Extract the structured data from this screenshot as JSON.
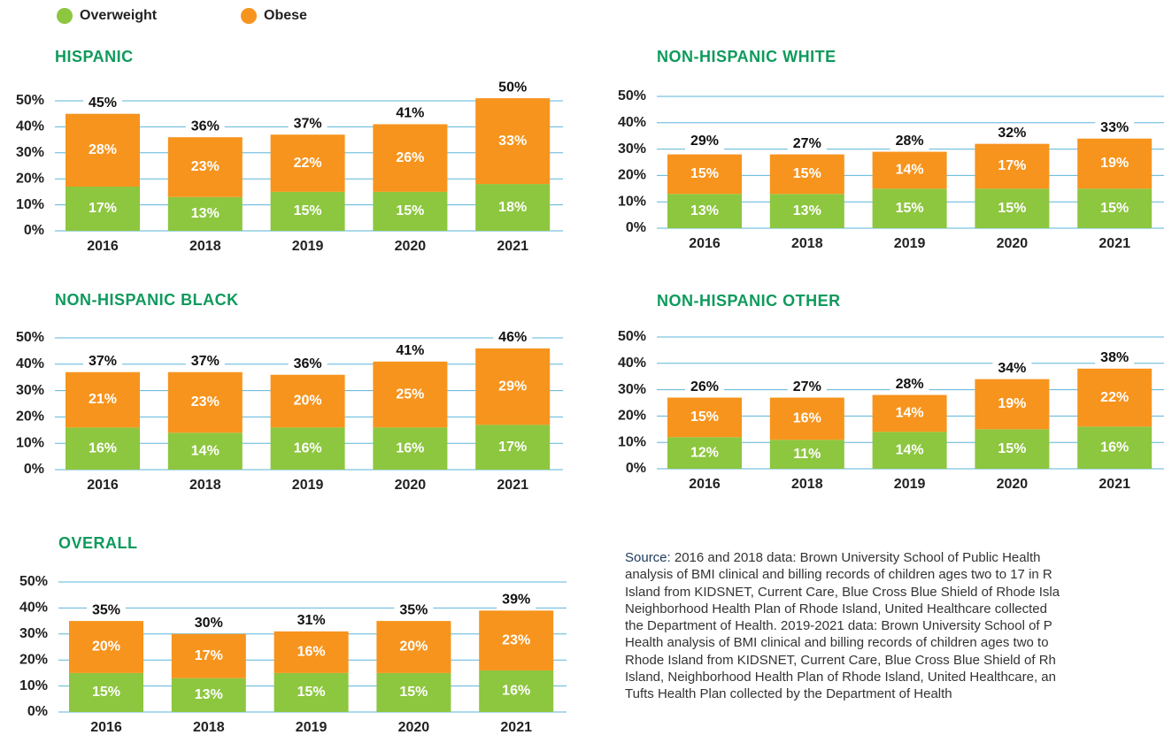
{
  "chart_data": [
    {
      "type": "bar",
      "stacked": true,
      "title": "HISPANIC",
      "categories": [
        "2016",
        "2018",
        "2019",
        "2020",
        "2021"
      ],
      "series": [
        {
          "name": "Overweight",
          "color": "#8dc63f",
          "values": [
            17,
            13,
            15,
            15,
            18
          ],
          "value_labels": [
            "17%",
            "13%",
            "15%",
            "15%",
            "18%"
          ]
        },
        {
          "name": "Obese",
          "color": "#f7941d",
          "values": [
            28,
            23,
            22,
            26,
            33
          ],
          "value_labels": [
            "28%",
            "23%",
            "22%",
            "26%",
            "33%"
          ]
        }
      ],
      "totals": [
        45,
        36,
        37,
        41,
        50
      ],
      "total_labels": [
        "45%",
        "36%",
        "37%",
        "41%",
        "50%"
      ],
      "ylim": [
        0,
        50
      ],
      "yticks": [
        {
          "value": 0,
          "label": "0%"
        },
        {
          "value": 10,
          "label": "10%"
        },
        {
          "value": 20,
          "label": "20%"
        },
        {
          "value": 30,
          "label": "30%"
        },
        {
          "value": 40,
          "label": "40%"
        },
        {
          "value": 50,
          "label": "50%"
        }
      ],
      "grid": true
    },
    {
      "type": "bar",
      "stacked": true,
      "title": "NON-HISPANIC WHITE",
      "categories": [
        "2016",
        "2018",
        "2019",
        "2020",
        "2021"
      ],
      "series": [
        {
          "color": "#8dc63f",
          "values": [
            13,
            13,
            15,
            15,
            15
          ],
          "value_labels": [
            "13%",
            "13%",
            "15%",
            "15%",
            "15%"
          ]
        },
        {
          "color": "#f7941d",
          "values": [
            15,
            15,
            14,
            17,
            19
          ],
          "value_labels": [
            "15%",
            "15%",
            "14%",
            "17%",
            "19%"
          ]
        }
      ],
      "totals": [
        29,
        27,
        28,
        32,
        33
      ],
      "total_labels": [
        "29%",
        "27%",
        "28%",
        "32%",
        "33%"
      ],
      "ylim": [
        0,
        50
      ],
      "yticks": [
        {
          "value": 0,
          "label": "0%"
        },
        {
          "value": 10,
          "label": "10%"
        },
        {
          "value": 20,
          "label": "20%"
        },
        {
          "value": 30,
          "label": "30%"
        },
        {
          "value": 40,
          "label": "40%"
        },
        {
          "value": 50,
          "label": "50%"
        }
      ],
      "grid": true
    },
    {
      "type": "bar",
      "stacked": true,
      "title": "NON-HISPANIC BLACK",
      "categories": [
        "2016",
        "2018",
        "2019",
        "2020",
        "2021"
      ],
      "series": [
        {
          "color": "#8dc63f",
          "values": [
            16,
            14,
            16,
            16,
            17
          ],
          "value_labels": [
            "16%",
            "14%",
            "16%",
            "16%",
            "17%"
          ]
        },
        {
          "color": "#f7941d",
          "values": [
            21,
            23,
            20,
            25,
            29
          ],
          "value_labels": [
            "21%",
            "23%",
            "20%",
            "25%",
            "29%"
          ]
        }
      ],
      "totals": [
        37,
        37,
        36,
        41,
        46
      ],
      "total_labels": [
        "37%",
        "37%",
        "36%",
        "41%",
        "46%"
      ],
      "ylim": [
        0,
        50
      ],
      "yticks": [
        {
          "value": 0,
          "label": "0%"
        },
        {
          "value": 10,
          "label": "10%"
        },
        {
          "value": 20,
          "label": "20%"
        },
        {
          "value": 30,
          "label": "30%"
        },
        {
          "value": 40,
          "label": "40%"
        },
        {
          "value": 50,
          "label": "50%"
        }
      ],
      "grid": true
    },
    {
      "type": "bar",
      "stacked": true,
      "title": "NON-HISPANIC OTHER",
      "categories": [
        "2016",
        "2018",
        "2019",
        "2020",
        "2021"
      ],
      "series": [
        {
          "color": "#8dc63f",
          "values": [
            12,
            11,
            14,
            15,
            16
          ],
          "value_labels": [
            "12%",
            "11%",
            "14%",
            "15%",
            "16%"
          ]
        },
        {
          "color": "#f7941d",
          "values": [
            15,
            16,
            14,
            19,
            22
          ],
          "value_labels": [
            "15%",
            "16%",
            "14%",
            "19%",
            "22%"
          ]
        }
      ],
      "totals": [
        26,
        27,
        28,
        34,
        38
      ],
      "total_labels": [
        "26%",
        "27%",
        "28%",
        "34%",
        "38%"
      ],
      "ylim": [
        0,
        50
      ],
      "yticks": [
        {
          "value": 0,
          "label": "0%"
        },
        {
          "value": 10,
          "label": "10%"
        },
        {
          "value": 20,
          "label": "20%"
        },
        {
          "value": 30,
          "label": "30%"
        },
        {
          "value": 40,
          "label": "40%"
        },
        {
          "value": 50,
          "label": "50%"
        }
      ],
      "grid": true
    },
    {
      "type": "bar",
      "stacked": true,
      "title": "OVERALL",
      "categories": [
        "2016",
        "2018",
        "2019",
        "2020",
        "2021"
      ],
      "series": [
        {
          "color": "#8dc63f",
          "values": [
            15,
            13,
            15,
            15,
            16
          ],
          "value_labels": [
            "15%",
            "13%",
            "15%",
            "15%",
            "16%"
          ]
        },
        {
          "color": "#f7941d",
          "values": [
            20,
            17,
            16,
            20,
            23
          ],
          "value_labels": [
            "20%",
            "17%",
            "16%",
            "20%",
            "23%"
          ]
        }
      ],
      "totals": [
        35,
        30,
        31,
        35,
        39
      ],
      "total_labels": [
        "35%",
        "30%",
        "31%",
        "35%",
        "39%"
      ],
      "ylim": [
        0,
        50
      ],
      "yticks": [
        {
          "value": 0,
          "label": "0%"
        },
        {
          "value": 10,
          "label": "10%"
        },
        {
          "value": 20,
          "label": "20%"
        },
        {
          "value": 30,
          "label": "30%"
        },
        {
          "value": 40,
          "label": "40%"
        },
        {
          "value": 50,
          "label": "50%"
        }
      ],
      "grid": true
    }
  ],
  "source": {
    "label": "Source:",
    "lines": [
      "2016 and 2018 data: Brown University School of Public Health",
      "analysis of BMI clinical and billing records of children ages two to 17 in R",
      "Island from KIDSNET, Current Care, Blue Cross Blue Shield of Rhode Isla",
      "Neighborhood Health Plan of Rhode Island, United Healthcare collected",
      "the Department of Health. 2019-2021 data: Brown University School of P",
      "Health analysis of BMI clinical and billing records of children ages two to",
      "Rhode Island from KIDSNET, Current Care, Blue Cross Blue Shield of Rh",
      "Island, Neighborhood Health Plan of Rhode Island, United Healthcare, an",
      "Tufts Health Plan collected by the Department of Health"
    ]
  }
}
